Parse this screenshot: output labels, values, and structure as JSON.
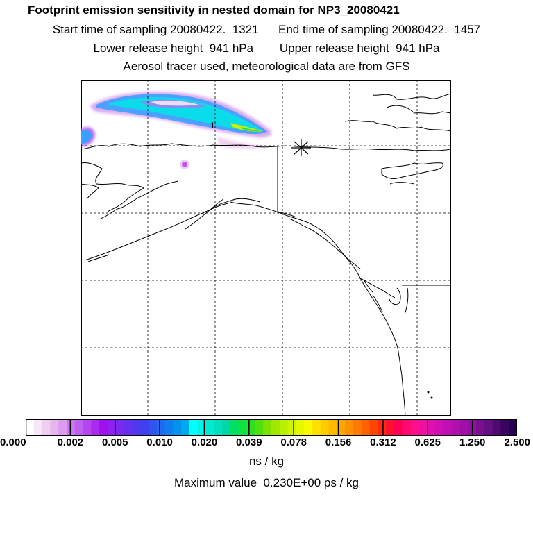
{
  "header": {
    "title": "Footprint emission sensitivity in nested domain for NP3_20080421",
    "line2": "Start time of sampling 20080422.  1321      End time of sampling 20080422.  1457",
    "line3": "Lower release height  941 hPa        Upper release height  941 hPa",
    "line4": "Aerosol tracer used, meteorological data are from GFS"
  },
  "map": {
    "contour_label": "1",
    "release_marker_icon": "asterisk-star-icon"
  },
  "colorbar": {
    "tick_labels": [
      "0.000",
      "0.002",
      "0.005",
      "0.010",
      "0.020",
      "0.039",
      "0.078",
      "0.156",
      "0.312",
      "0.625",
      "1.250",
      "2.500"
    ],
    "colors": [
      "#ffffff",
      "#f7e6f7",
      "#efcfef",
      "#e6b5ef",
      "#dd9bef",
      "#c978ef",
      "#bf5fef",
      "#b545ef",
      "#aa2aef",
      "#a010ef",
      "#8f20ef",
      "#7a2aef",
      "#6530ef",
      "#5038ef",
      "#3f40ef",
      "#2f55ef",
      "#1f6aef",
      "#0f7fef",
      "#0094ef",
      "#00a8ef",
      "#00ffff",
      "#00f5e8",
      "#00ebd2",
      "#00e0bd",
      "#00d6a8",
      "#00e060",
      "#10e040",
      "#30e020",
      "#50e010",
      "#80e000",
      "#a0e800",
      "#b8f000",
      "#cff400",
      "#e6f800",
      "#f8fa00",
      "#ffe000",
      "#ffcc00",
      "#ffb800",
      "#ffa500",
      "#ff9000",
      "#ff7a00",
      "#ff6000",
      "#ff4500",
      "#ff2a10",
      "#ff1030",
      "#ff0055",
      "#ff0a70",
      "#ff108a",
      "#ef10a0",
      "#df10b0",
      "#d010b5",
      "#c010b5",
      "#b010b0",
      "#a010a8",
      "#9010a0",
      "#7a1090",
      "#641080",
      "#4f0a70",
      "#3a0560",
      "#280050"
    ],
    "units": "ns / kg"
  },
  "footer": {
    "max_value": "Maximum value  0.230E+00 ps / kg"
  }
}
